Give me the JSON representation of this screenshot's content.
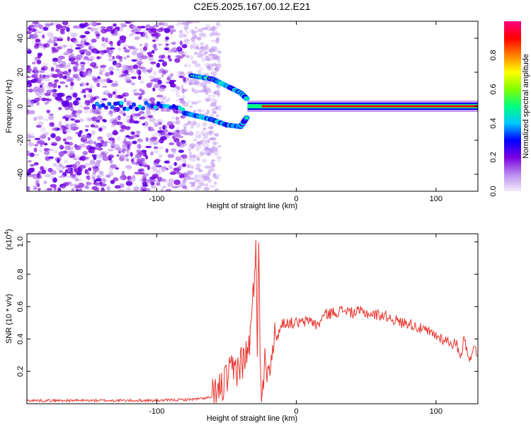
{
  "title": "C2E5.2025.167.00.12.E21",
  "chart_data": [
    {
      "type": "heatmap",
      "title": "C2E5.2025.167.00.12.E21",
      "xlabel": "Height of straight line (km)",
      "ylabel": "Frequency (Hz)",
      "xlim": [
        -193,
        130
      ],
      "ylim": [
        -50,
        50
      ],
      "x_ticks": [
        -100,
        0,
        100
      ],
      "y_ticks": [
        -40,
        -20,
        0,
        20,
        40
      ],
      "colorbar": {
        "label": "Normalized spectral amplitude",
        "range": [
          0,
          1
        ],
        "ticks": [
          0.0,
          0.2,
          0.4,
          0.6,
          0.8
        ],
        "colors": [
          "#f4ecfa",
          "#b98aee",
          "#7a00e0",
          "#0000ff",
          "#00c8ff",
          "#00ff80",
          "#80ff00",
          "#ffff00",
          "#ff8000",
          "#ff0000",
          "#ff0080"
        ]
      },
      "features": {
        "noise_region_x": [
          -193,
          -60
        ],
        "upper_branch": {
          "x": [
            -75,
            -60,
            -50,
            -40,
            -35
          ],
          "y": [
            18,
            16,
            12,
            8,
            4
          ]
        },
        "lower_branch": {
          "x": [
            -80,
            -70,
            -60,
            -50,
            -40,
            -35
          ],
          "y": [
            -4,
            -6,
            -8,
            -11,
            -12,
            -6
          ]
        },
        "carrier_line": {
          "x": [
            -35,
            130
          ],
          "y": 0
        }
      }
    },
    {
      "type": "line",
      "xlabel": "Height of straight line (km)",
      "ylabel": "SNR (10 * v/v)",
      "y_scale_note": "(x10",
      "y_scale_exp": "4",
      "xlim": [
        -193,
        130
      ],
      "ylim": [
        0,
        1.05
      ],
      "x_ticks": [
        -100,
        0,
        100
      ],
      "y_ticks": [
        0.2,
        0.4,
        0.6,
        0.8,
        1.0
      ],
      "y_tick_labels": [
        "0.2",
        "0.4",
        "0.6",
        "0.8",
        "1.0"
      ],
      "color": "#e8332c",
      "series": [
        {
          "x": [
            -193,
            -150,
            -120,
            -100,
            -80,
            -70,
            -60,
            -55,
            -50,
            -45,
            -40,
            -35,
            -32,
            -30,
            -29,
            -28,
            -27,
            -26,
            -25,
            -22,
            -20,
            -18,
            -15,
            -12,
            -10,
            -5,
            0,
            5,
            10,
            15,
            20,
            25,
            30,
            35,
            40,
            45,
            50,
            55,
            60,
            65,
            70,
            75,
            80,
            85,
            90,
            95,
            100,
            105,
            110,
            115,
            118,
            120,
            122,
            125,
            127,
            130
          ],
          "y": [
            0.02,
            0.02,
            0.02,
            0.02,
            0.025,
            0.03,
            0.04,
            0.08,
            0.15,
            0.2,
            0.25,
            0.3,
            0.5,
            0.8,
            1.05,
            0.4,
            0.95,
            0.3,
            0.1,
            0.3,
            0.2,
            0.35,
            0.4,
            0.45,
            0.5,
            0.5,
            0.5,
            0.5,
            0.52,
            0.48,
            0.55,
            0.56,
            0.57,
            0.58,
            0.56,
            0.57,
            0.56,
            0.55,
            0.55,
            0.54,
            0.52,
            0.5,
            0.5,
            0.48,
            0.46,
            0.44,
            0.42,
            0.4,
            0.38,
            0.36,
            0.3,
            0.4,
            0.35,
            0.25,
            0.38,
            0.3
          ]
        }
      ]
    }
  ]
}
